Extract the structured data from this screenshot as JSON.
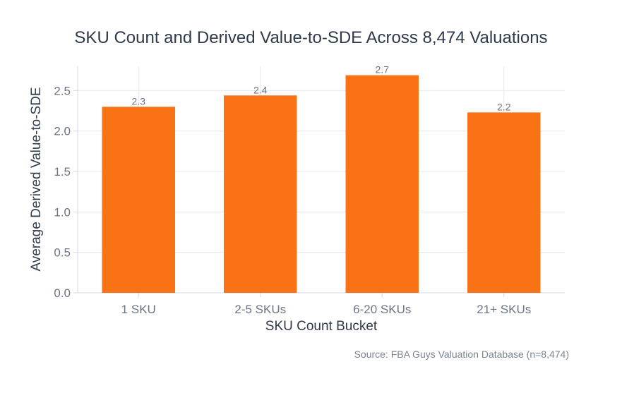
{
  "chart_data": {
    "type": "bar",
    "title": "SKU Count and Derived Value-to-SDE Across 8,474 Valuations",
    "xlabel": "SKU Count Bucket",
    "ylabel": "Average Derived Value-to-SDE",
    "categories": [
      "1 SKU",
      "2-5 SKUs",
      "6-20 SKUs",
      "21+ SKUs"
    ],
    "values": [
      2.3,
      2.44,
      2.69,
      2.23
    ],
    "data_labels": [
      "2.3",
      "2.4",
      "2.7",
      "2.2"
    ],
    "ylim": [
      0,
      2.8
    ],
    "yticks": [
      0,
      0.5,
      1.0,
      1.5,
      2.0,
      2.5
    ],
    "ytick_labels": [
      "0.0",
      "0.5",
      "1.0",
      "1.5",
      "2.0",
      "2.5"
    ],
    "grid": true,
    "bar_color": "#f97316",
    "source_note": "Source: FBA Guys Valuation Database (n=8,474)"
  }
}
